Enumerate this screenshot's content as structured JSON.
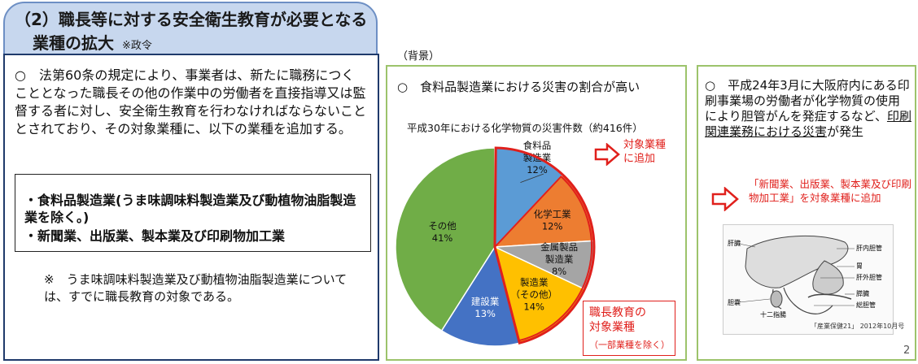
{
  "title": {
    "line1": "（2）職長等に対する安全衛生教育が必要となる",
    "line2": "業種の拡大",
    "note": "※政令"
  },
  "left": {
    "paragraph": "○　法第60条の規定により、事業者は、新たに職務につくこととなった職長その他の作業中の労働者を直接指導又は監督する者に対し、安全衛生教育を行わなければならないこととされており、その対象業種に、以下の業種を追加する。",
    "types": [
      "・食料品製造業(うま味調味料製造業及び動植物油脂製造業を除く。)",
      "・新聞業、出版業、製本業及び印刷物加工業"
    ],
    "note": "※　うま味調味料製造業及び動植物油脂製造業については、すでに職長教育の対象である。"
  },
  "background_label": "（背景）",
  "middle": {
    "heading": "○　食料品製造業における災害の割合が高い",
    "chart_title": "平成30年における化学物質の災害件数（約416件）",
    "add_label": [
      "対象業種",
      "に追加"
    ],
    "chokan_lines": [
      "職長教育の",
      "対象業種"
    ],
    "chokan_small": "（一部業種を除く）"
  },
  "chart_data": {
    "type": "pie",
    "title": "平成30年における化学物質の災害件数（約416件）",
    "slices": [
      {
        "label": "食料品製造業",
        "label_lines": [
          "食料品",
          "製造業"
        ],
        "pct": "12%",
        "value": 12,
        "color": "#5b9bd5"
      },
      {
        "label": "化学工業",
        "label_lines": [
          "化学工業"
        ],
        "pct": "12%",
        "value": 12,
        "color": "#ed7d31"
      },
      {
        "label": "金属製品製造業",
        "label_lines": [
          "金属製品",
          "製造業"
        ],
        "pct": "8%",
        "value": 8,
        "color": "#a5a5a5"
      },
      {
        "label": "製造業（その他）",
        "label_lines": [
          "製造業",
          "（その他）"
        ],
        "pct": "14%",
        "value": 14,
        "color": "#ffc000"
      },
      {
        "label": "建設業",
        "label_lines": [
          "建設業"
        ],
        "pct": "13%",
        "value": 13,
        "color": "#4472c4"
      },
      {
        "label": "その他",
        "label_lines": [
          "その他"
        ],
        "pct": "41%",
        "value": 41,
        "color": "#70ad47"
      }
    ]
  },
  "right": {
    "paragraph_plain": "○　平成24年3月に大阪府内にある印刷事業場の労働者が化学物質の使用により胆管がんを発症するなど、",
    "paragraph_underlined": "印刷関連業務における災害",
    "paragraph_end": "が発生",
    "red_text": "「新聞業、出版業、製本業及び印刷物加工業」を対象業種に追加",
    "illustration_labels": [
      "肝臓",
      "肝内胆管",
      "胃",
      "肝外胆管",
      "膵臓",
      "胆嚢",
      "十二指腸",
      "総胆管"
    ],
    "illustration_caption": "「産業保健21」 2012年10月号"
  },
  "page_number": "2"
}
